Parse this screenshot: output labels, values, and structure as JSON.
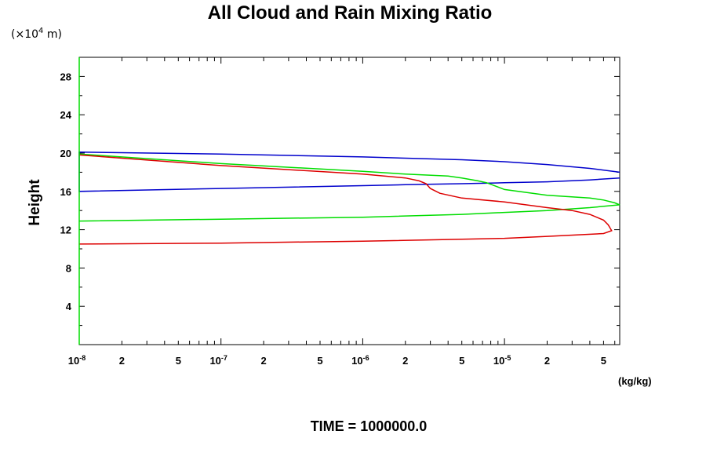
{
  "chart_data": {
    "type": "line",
    "title": "All Cloud and Rain Mixing Ratio",
    "ylabel": "Height",
    "y_unit_prefix": "(×10",
    "y_unit_exp": "4",
    "y_unit_suffix": " m)",
    "x_units": "(kg/kg)",
    "x_scale": "log",
    "xlim": [
      1e-08,
      6.5e-05
    ],
    "ylim": [
      0,
      30
    ],
    "y_ticks": [
      "4",
      "8",
      "12",
      "16",
      "20",
      "24",
      "28"
    ],
    "x_major_ticks": [
      {
        "base": "10",
        "exp": "-8"
      },
      {
        "base": "10",
        "exp": "-7"
      },
      {
        "base": "10",
        "exp": "-6"
      },
      {
        "base": "10",
        "exp": "-5"
      }
    ],
    "x_minor_labels": [
      "2",
      "5"
    ],
    "series": [
      {
        "color": "#0000cc",
        "points": [
          [
            6.5e-05,
            17.4
          ],
          [
            4e-05,
            17.2
          ],
          [
            2e-05,
            17.0
          ],
          [
            1e-05,
            16.9
          ],
          [
            5e-06,
            16.8
          ],
          [
            2e-06,
            16.7
          ],
          [
            1e-06,
            16.6
          ],
          [
            1e-07,
            16.3
          ],
          [
            1e-08,
            16.0
          ],
          [
            1e-08,
            20.1
          ],
          [
            1e-07,
            19.9
          ],
          [
            1e-06,
            19.6
          ],
          [
            5e-06,
            19.3
          ],
          [
            1e-05,
            19.1
          ],
          [
            2e-05,
            18.8
          ],
          [
            4e-05,
            18.4
          ],
          [
            6.5e-05,
            18.0
          ]
        ]
      },
      {
        "color": "#00dd00",
        "points": [
          [
            1e-08,
            12.9
          ],
          [
            1e-07,
            13.1
          ],
          [
            1e-06,
            13.3
          ],
          [
            5e-06,
            13.6
          ],
          [
            1e-05,
            13.8
          ],
          [
            2e-05,
            14.0
          ],
          [
            4e-05,
            14.3
          ],
          [
            6.5e-05,
            14.6
          ],
          [
            6e-05,
            14.8
          ],
          [
            5e-05,
            15.1
          ],
          [
            4e-05,
            15.3
          ],
          [
            2e-05,
            15.6
          ],
          [
            1e-05,
            16.2
          ],
          [
            7.5e-06,
            16.9
          ],
          [
            6.5e-06,
            17.1
          ],
          [
            5e-06,
            17.4
          ],
          [
            4e-06,
            17.6
          ],
          [
            2e-06,
            17.8
          ],
          [
            1e-06,
            18.1
          ],
          [
            1e-07,
            18.9
          ],
          [
            1e-08,
            19.9
          ]
        ]
      },
      {
        "color": "#dd0000",
        "points": [
          [
            1e-08,
            10.5
          ],
          [
            1e-07,
            10.6
          ],
          [
            1e-06,
            10.8
          ],
          [
            5e-06,
            11.0
          ],
          [
            1e-05,
            11.1
          ],
          [
            2e-05,
            11.3
          ],
          [
            5e-05,
            11.6
          ],
          [
            5.7e-05,
            11.9
          ],
          [
            5.4e-05,
            12.5
          ],
          [
            5e-05,
            13.0
          ],
          [
            4e-05,
            13.6
          ],
          [
            3e-05,
            14.0
          ],
          [
            2e-05,
            14.3
          ],
          [
            1e-05,
            14.9
          ],
          [
            5e-06,
            15.3
          ],
          [
            3.5e-06,
            15.8
          ],
          [
            3e-06,
            16.3
          ],
          [
            2.8e-06,
            16.8
          ],
          [
            2.5e-06,
            17.1
          ],
          [
            2e-06,
            17.4
          ],
          [
            1e-06,
            17.8
          ],
          [
            1e-07,
            18.7
          ],
          [
            1e-08,
            19.8
          ]
        ]
      }
    ]
  },
  "footer": {
    "time_text": "TIME = 1000000.0"
  }
}
